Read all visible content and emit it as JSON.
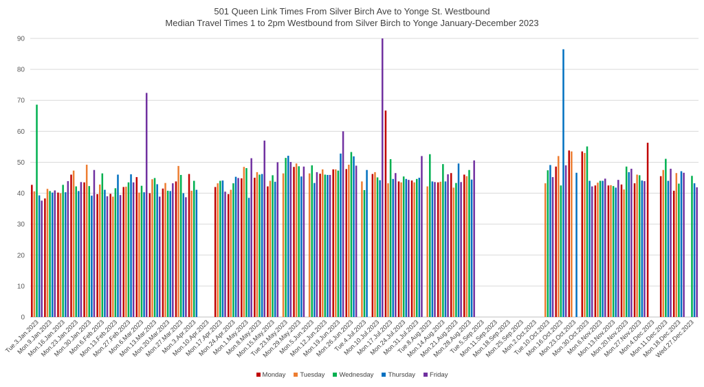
{
  "chart_data": {
    "type": "bar",
    "title": "501 Queen Link Times From Silver Birch Ave to Yonge St. Westbound",
    "subtitle": "Median Travel Times 1 to 2pm Westbound from Silver Birch to Yonge January-December 2023",
    "ylim": [
      0,
      90
    ],
    "yticks": [
      0,
      10,
      20,
      30,
      40,
      50,
      60,
      70,
      80,
      90
    ],
    "grid": true,
    "legend_position": "bottom",
    "categories": [
      "Tue.3.Jan.2023",
      "Mon.9.Jan.2023",
      "Mon.16.Jan.2023",
      "Mon.23.Jan.2023",
      "Mon.30.Jan.2023",
      "Mon.6.Feb.2023",
      "Mon.13.Feb.2023",
      "Mon.27.Feb.2023",
      "Mon.6.Mar.2023",
      "Mon.13.Mar.2023",
      "Mon.20.Mar.2023",
      "Mon.27.Mar.2023",
      "Mon.3.Apr.2023",
      "Mon.10.Apr.2023",
      "Mon.17.Apr.2023",
      "Mon.24.Apr.2023",
      "Mon.1.May.2023",
      "Mon.8.May.2023",
      "Mon.15.May.2023",
      "Tue.23.May.2023",
      "Mon.29.May.2023",
      "Mon.5.Jun.2023",
      "Mon.12.Jun.2023",
      "Mon.19.Jun.2023",
      "Mon.26.Jun.2023",
      "Tue.4.Jul.2023",
      "Mon.10.Jul.2023",
      "Mon.17.Jul.2023",
      "Mon.24.Jul.2023",
      "Mon.31.Jul.2023",
      "Tue.8.Aug.2023",
      "Mon.14.Aug.2023",
      "Mon.21.Aug.2023",
      "Mon.28.Aug.2023",
      "Tue.5.Sep.2023",
      "Mon.11.Sep.2023",
      "Mon.18.Sep.2023",
      "Mon.25.Sep.2023",
      "Mon.2.Oct.2023",
      "Tue.10.Oct.2023",
      "Mon.16.Oct.2023",
      "Mon.23.Oct.2023",
      "Mon.30.Oct.2023",
      "Mon.6.Nov.2023",
      "Mon.13.Nov.2023",
      "Mon.20.Nov.2023",
      "Mon.27.Nov.2023",
      "Mon.4.Dec.2023",
      "Mon.11.Dec.2023",
      "Mon.18.Dec.2023",
      "Wed.27.Dec.2023"
    ],
    "series": [
      {
        "name": "Monday",
        "color": "#c00000",
        "values": [
          42.7,
          38.3,
          40.2,
          46.0,
          43.5,
          39.7,
          39.8,
          42.0,
          45.2,
          40.0,
          41.5,
          43.8,
          46.2,
          null,
          42.0,
          39.7,
          44.8,
          45.0,
          42.2,
          null,
          48.5,
          null,
          46.3,
          47.7,
          47.8,
          null,
          46.2,
          66.7,
          43.8,
          44.1,
          null,
          43.5,
          46.5,
          46.0,
          null,
          null,
          null,
          null,
          null,
          null,
          48.6,
          53.8,
          53.5,
          42.5,
          42.5,
          42.8,
          43.2,
          56.3,
          45.5,
          40.8,
          null
        ]
      },
      {
        "name": "Tuesday",
        "color": "#ed7d31",
        "values": [
          40.6,
          41.4,
          40.0,
          47.3,
          49.2,
          42.8,
          38.9,
          42.1,
          40.2,
          44.5,
          43.3,
          48.8,
          40.8,
          null,
          43.2,
          41.1,
          48.5,
          46.8,
          44.0,
          46.4,
          49.6,
          46.4,
          47.7,
          47.7,
          49.2,
          43.8,
          46.8,
          43.2,
          43.5,
          43.5,
          42.2,
          43.7,
          41.8,
          45.5,
          null,
          null,
          null,
          null,
          null,
          43.2,
          52.0,
          53.5,
          53.0,
          43.4,
          42.6,
          41.2,
          46.0,
          null,
          47.5,
          46.5,
          null
        ]
      },
      {
        "name": "Wednesday",
        "color": "#00b050",
        "values": [
          68.6,
          40.7,
          42.7,
          42.2,
          42.3,
          46.4,
          41.6,
          43.5,
          42.4,
          44.9,
          40.8,
          45.9,
          44.0,
          null,
          44.0,
          43.2,
          48.1,
          46.0,
          45.8,
          51.4,
          48.7,
          49.0,
          46.0,
          47.3,
          53.3,
          41.0,
          45.1,
          51.0,
          45.4,
          44.6,
          52.6,
          49.4,
          43.3,
          47.5,
          null,
          null,
          null,
          null,
          null,
          47.4,
          42.5,
          null,
          55.1,
          44.0,
          42.3,
          48.6,
          45.8,
          null,
          51.1,
          43.1,
          45.6
        ]
      },
      {
        "name": "Thursday",
        "color": "#0070c0",
        "values": [
          39.3,
          40.2,
          40.3,
          40.7,
          39.2,
          41.1,
          46.0,
          46.1,
          40.3,
          42.9,
          40.7,
          40.0,
          41.1,
          null,
          44.1,
          45.3,
          38.5,
          46.2,
          43.7,
          52.1,
          45.4,
          43.3,
          45.9,
          52.8,
          51.9,
          47.5,
          44.2,
          44.6,
          44.6,
          45.0,
          43.8,
          43.8,
          49.6,
          44.4,
          null,
          null,
          null,
          null,
          null,
          49.1,
          86.5,
          46.6,
          44.0,
          44.0,
          41.8,
          46.8,
          44.1,
          null,
          44.0,
          47.1,
          43.2
        ]
      },
      {
        "name": "Friday",
        "color": "#7030a0",
        "values": [
          37.6,
          40.9,
          43.9,
          43.6,
          47.5,
          39.0,
          39.4,
          43.5,
          72.4,
          38.9,
          43.2,
          38.7,
          null,
          null,
          40.5,
          44.9,
          51.3,
          57.0,
          50.0,
          50.1,
          48.6,
          46.8,
          45.9,
          60.0,
          48.9,
          null,
          90.0,
          46.5,
          44.3,
          52.0,
          43.6,
          46.1,
          43.6,
          50.6,
          null,
          null,
          null,
          null,
          null,
          45.2,
          49.0,
          null,
          42.2,
          44.7,
          44.3,
          47.9,
          43.9,
          null,
          47.9,
          46.6,
          41.9
        ]
      }
    ]
  }
}
